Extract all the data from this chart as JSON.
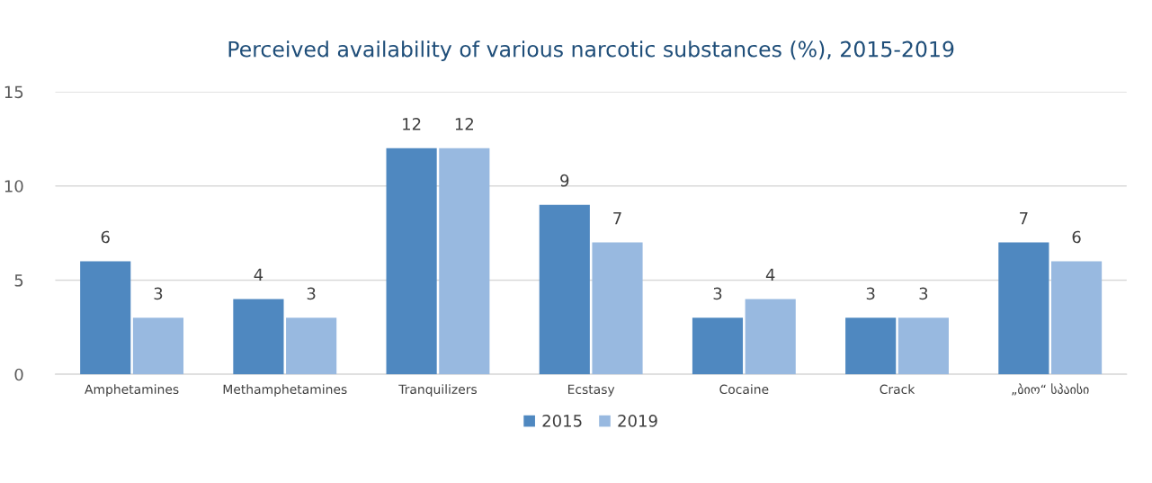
{
  "chart_data": {
    "type": "bar",
    "title": "Perceived availability of various narcotic substances (%), 2015-2019",
    "categories": [
      "Amphetamines",
      "Methamphetamines",
      "Tranquilizers",
      "Ecstasy",
      "Cocaine",
      "Crack",
      "„ბიო“ სპაისი"
    ],
    "series": [
      {
        "name": "2015",
        "color": "#4f88c0",
        "values": [
          6,
          4,
          12,
          9,
          3,
          3,
          7
        ]
      },
      {
        "name": "2019",
        "color": "#98b9e0",
        "values": [
          3,
          3,
          12,
          7,
          4,
          3,
          6
        ]
      }
    ],
    "ylim": [
      0,
      15
    ],
    "yticks": [
      0,
      5,
      10,
      15
    ],
    "grid": "y",
    "legend": "bottom",
    "data_labels": true
  }
}
